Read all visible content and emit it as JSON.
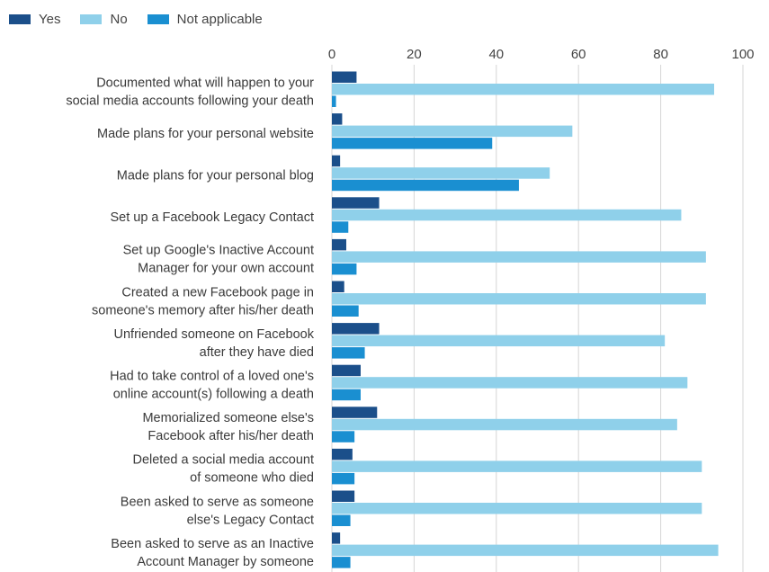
{
  "chart_data": {
    "type": "bar",
    "orientation": "horizontal",
    "title": "",
    "xlabel": "",
    "ylabel": "",
    "xlim": [
      0,
      100
    ],
    "x_ticks": [
      "0",
      "20",
      "40",
      "60",
      "80",
      "100"
    ],
    "grid": "vertical",
    "legend_position": "top-left",
    "categories": [
      [
        "Documented what will happen to your",
        "social media accounts following your death"
      ],
      [
        "Made plans for your personal website"
      ],
      [
        "Made plans for your personal blog"
      ],
      [
        "Set up a Facebook Legacy Contact"
      ],
      [
        "Set up Google's Inactive Account",
        "Manager for your own account"
      ],
      [
        "Created a new Facebook page in",
        "someone's memory after his/her death"
      ],
      [
        "Unfriended someone on Facebook",
        "after they have died"
      ],
      [
        "Had to take control of a loved one's",
        "online account(s) following a death"
      ],
      [
        "Memorialized someone else's",
        "Facebook after his/her death"
      ],
      [
        "Deleted a social media account",
        "of someone who died"
      ],
      [
        "Been asked to serve as someone",
        "else's Legacy Contact"
      ],
      [
        "Been asked to serve as an Inactive",
        "Account Manager by someone"
      ]
    ],
    "series": [
      {
        "name": "Yes",
        "color": "#1b4f8a",
        "values": [
          6,
          2.5,
          2,
          11.5,
          3.5,
          3,
          11.5,
          7,
          11,
          5,
          5.5,
          2
        ]
      },
      {
        "name": "No",
        "color": "#8fd0ea",
        "values": [
          93,
          58.5,
          53,
          85,
          91,
          91,
          81,
          86.5,
          84,
          90,
          90,
          94
        ]
      },
      {
        "name": "Not applicable",
        "color": "#1a8fd1",
        "values": [
          1,
          39,
          45.5,
          4,
          6,
          6.5,
          8,
          7,
          5.5,
          5.5,
          4.5,
          4.5
        ]
      }
    ]
  }
}
